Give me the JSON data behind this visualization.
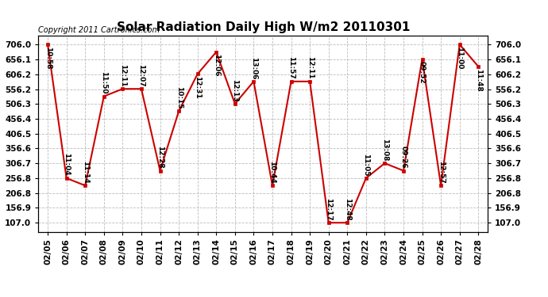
{
  "title": "Solar Radiation Daily High W/m2 20110301",
  "copyright": "Copyright 2011 Cartronics.com",
  "dates": [
    "02/05",
    "02/06",
    "02/07",
    "02/08",
    "02/09",
    "02/10",
    "02/11",
    "02/12",
    "02/13",
    "02/14",
    "02/15",
    "02/16",
    "02/17",
    "02/18",
    "02/19",
    "02/20",
    "02/21",
    "02/22",
    "02/23",
    "02/24",
    "02/25",
    "02/26",
    "02/27",
    "02/28"
  ],
  "values": [
    706.0,
    257.0,
    232.0,
    532.0,
    557.0,
    557.0,
    282.0,
    482.0,
    607.0,
    681.0,
    507.0,
    582.0,
    232.0,
    582.0,
    582.0,
    107.0,
    107.0,
    257.0,
    307.0,
    282.0,
    657.0,
    232.0,
    706.0,
    632.0
  ],
  "labels": [
    "10:58",
    "11:04",
    "11:14",
    "11:50",
    "12:11",
    "12:07",
    "12:28",
    "10:15",
    "12:31",
    "12:06",
    "12:13",
    "13:06",
    "10:44",
    "11:57",
    "12:11",
    "12:17",
    "12:48",
    "11:05",
    "13:08",
    "09:26",
    "09:52",
    "12:57",
    "11:00",
    "11:48"
  ],
  "ylim_min": 107.0,
  "ylim_max": 706.0,
  "yticks": [
    107.0,
    156.9,
    206.8,
    256.8,
    306.7,
    356.6,
    406.5,
    456.4,
    506.3,
    556.2,
    606.2,
    656.1,
    706.0
  ],
  "line_color": "#cc0000",
  "marker_color": "#cc0000",
  "bg_color": "#ffffff",
  "grid_color": "#bbbbbb",
  "title_fontsize": 11,
  "label_fontsize": 6.5,
  "copyright_fontsize": 7,
  "tick_fontsize": 7.5
}
